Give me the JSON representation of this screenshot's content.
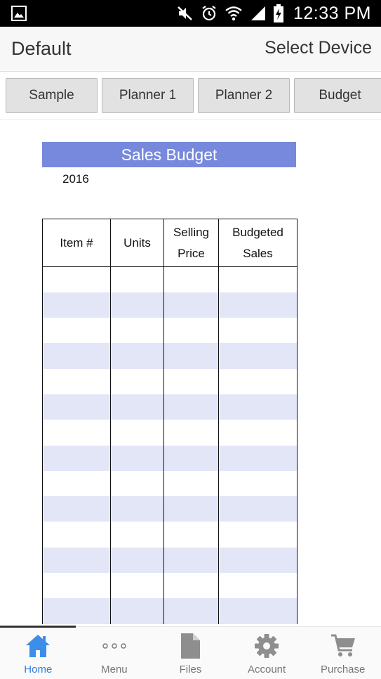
{
  "status_bar": {
    "time": "12:33 PM",
    "icons": [
      "gallery-icon",
      "mute-icon",
      "alarm-icon",
      "wifi-icon",
      "signal-icon",
      "battery-charging-icon"
    ]
  },
  "header": {
    "title": "Default",
    "select_device": "Select Device"
  },
  "tabs": [
    {
      "label": "Sample"
    },
    {
      "label": "Planner 1"
    },
    {
      "label": "Planner 2"
    },
    {
      "label": "Budget"
    }
  ],
  "document": {
    "title": "Sales Budget",
    "year": "2016",
    "columns": [
      {
        "line1": "Item #",
        "line2": ""
      },
      {
        "line1": "Units",
        "line2": ""
      },
      {
        "line1": "Selling",
        "line2": "Price"
      },
      {
        "line1": "Budgeted",
        "line2": "Sales"
      }
    ],
    "rows": [
      [
        "",
        "",
        "",
        ""
      ],
      [
        "",
        "",
        "",
        ""
      ],
      [
        "",
        "",
        "",
        ""
      ],
      [
        "",
        "",
        "",
        ""
      ],
      [
        "",
        "",
        "",
        ""
      ],
      [
        "",
        "",
        "",
        ""
      ],
      [
        "",
        "",
        "",
        ""
      ],
      [
        "",
        "",
        "",
        ""
      ],
      [
        "",
        "",
        "",
        ""
      ],
      [
        "",
        "",
        "",
        ""
      ],
      [
        "",
        "",
        "",
        ""
      ],
      [
        "",
        "",
        "",
        ""
      ],
      [
        "",
        "",
        "",
        ""
      ],
      [
        "",
        "",
        "",
        ""
      ]
    ]
  },
  "bottom_nav": {
    "items": [
      {
        "label": "Home",
        "icon": "home-icon",
        "active": true
      },
      {
        "label": "Menu",
        "icon": "more-dots-icon",
        "active": false
      },
      {
        "label": "Files",
        "icon": "file-icon",
        "active": false
      },
      {
        "label": "Account",
        "icon": "gear-icon",
        "active": false
      },
      {
        "label": "Purchase",
        "icon": "cart-icon",
        "active": false
      }
    ]
  },
  "colors": {
    "title_band": "#7789dc",
    "row_shade": "#e3e6f7",
    "active_nav": "#2f7fe0",
    "inactive_nav": "#777777"
  }
}
